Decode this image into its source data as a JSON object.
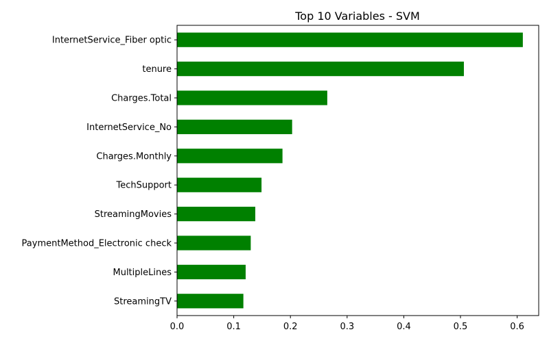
{
  "chart_data": {
    "type": "bar",
    "orientation": "horizontal",
    "title": "Top 10 Variables - SVM",
    "xlabel": "",
    "ylabel": "",
    "categories": [
      "InternetService_Fiber optic",
      "tenure",
      "Charges.Total",
      "InternetService_No",
      "Charges.Monthly",
      "TechSupport",
      "StreamingMovies",
      "PaymentMethod_Electronic check",
      "MultipleLines",
      "StreamingTV"
    ],
    "values": [
      0.61,
      0.506,
      0.265,
      0.203,
      0.186,
      0.149,
      0.138,
      0.13,
      0.121,
      0.117
    ],
    "xlim": [
      0,
      0.638
    ],
    "xticks": [
      0.0,
      0.1,
      0.2,
      0.3,
      0.4,
      0.5,
      0.6
    ],
    "xtick_labels": [
      "0.0",
      "0.1",
      "0.2",
      "0.3",
      "0.4",
      "0.5",
      "0.6"
    ],
    "bar_color": "#008000",
    "grid": false,
    "legend": "none"
  }
}
